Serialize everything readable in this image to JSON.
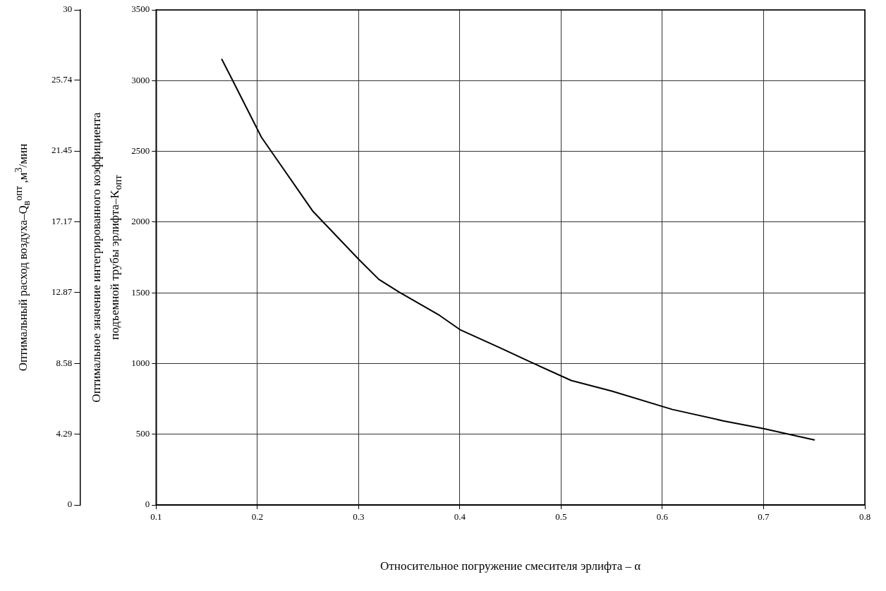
{
  "chart_data": {
    "type": "line",
    "xlabel": "Относительное погружение смесителя эрлифта – α",
    "ylabel": "Оптимальное значение интегрированного коэффициента\nподъемной трубы эрлифта–K$_{опт}$",
    "y2label": "Оптимальный расход воздуха–Q$_{в}$$^{опт}$ ,м$^{3}$/мин",
    "xlim": [
      0.1,
      0.8
    ],
    "xticks": [
      0.1,
      0.2,
      0.3,
      0.4,
      0.5,
      0.6,
      0.7,
      0.8
    ],
    "ylim": [
      0,
      3500
    ],
    "yticks": [
      0,
      500,
      1000,
      1500,
      2000,
      2500,
      3000,
      3500
    ],
    "y2lim": [
      0,
      30
    ],
    "y2ticks": [
      0,
      4.29,
      8.58,
      12.87,
      17.17,
      21.45,
      25.74,
      30
    ],
    "grid": true,
    "legend": false,
    "marker": "none",
    "line_style": "solid",
    "series": [
      {
        "color": "#000000",
        "x": [
          0.165,
          0.175,
          0.204,
          0.255,
          0.301,
          0.32,
          0.34,
          0.38,
          0.4,
          0.44,
          0.47,
          0.51,
          0.55,
          0.61,
          0.66,
          0.7,
          0.75
        ],
        "values": [
          3150,
          3010,
          2600,
          2075,
          1730,
          1595,
          1505,
          1340,
          1240,
          1110,
          1010,
          880,
          805,
          675,
          595,
          540,
          460
        ]
      }
    ]
  }
}
